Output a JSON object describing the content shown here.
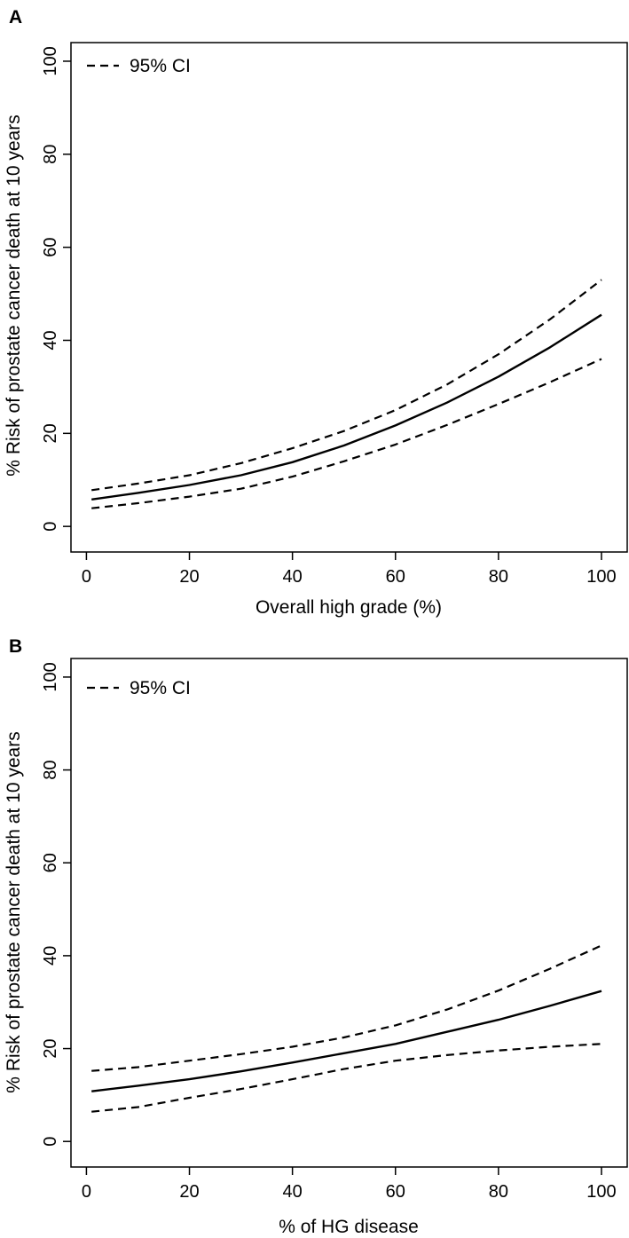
{
  "chart_data": [
    {
      "type": "line",
      "panel_label": "A",
      "xlabel": "Overall high grade (%)",
      "ylabel": "% Risk of prostate cancer death at 10 years",
      "xlim": [
        -3,
        105
      ],
      "ylim": [
        -5.5,
        104
      ],
      "xticks": [
        0,
        20,
        40,
        60,
        80,
        100
      ],
      "yticks": [
        0,
        20,
        40,
        60,
        80,
        100
      ],
      "legend": {
        "position": "top-left",
        "label": "95% CI"
      },
      "x": [
        1,
        10,
        20,
        30,
        40,
        50,
        60,
        70,
        80,
        90,
        100
      ],
      "series": [
        {
          "name": "Estimate",
          "style": "solid",
          "values": [
            5.8,
            7.2,
            8.9,
            11.0,
            13.8,
            17.4,
            21.7,
            26.6,
            32.2,
            38.5,
            45.5
          ]
        },
        {
          "name": "95% CI upper",
          "style": "dashed",
          "values": [
            7.8,
            9.2,
            11.0,
            13.6,
            16.8,
            20.5,
            25.0,
            30.5,
            37.0,
            44.5,
            53.0
          ]
        },
        {
          "name": "95% CI lower",
          "style": "dashed",
          "values": [
            3.9,
            5.0,
            6.4,
            8.1,
            10.7,
            14.0,
            17.6,
            21.8,
            26.3,
            31.0,
            36.0
          ]
        }
      ]
    },
    {
      "type": "line",
      "panel_label": "B",
      "xlabel": "% of HG disease",
      "ylabel": "% Risk of prostate cancer death at 10 years",
      "xlim": [
        -3,
        105
      ],
      "ylim": [
        -5.5,
        104
      ],
      "xticks": [
        0,
        20,
        40,
        60,
        80,
        100
      ],
      "yticks": [
        0,
        20,
        40,
        60,
        80,
        100
      ],
      "legend": {
        "position": "top-left",
        "label": "95% CI"
      },
      "x": [
        1,
        10,
        20,
        30,
        40,
        50,
        60,
        70,
        80,
        90,
        100
      ],
      "series": [
        {
          "name": "Estimate",
          "style": "solid",
          "values": [
            10.8,
            12.0,
            13.4,
            15.1,
            17.0,
            19.0,
            21.0,
            23.6,
            26.2,
            29.2,
            32.4
          ]
        },
        {
          "name": "95% CI upper",
          "style": "dashed",
          "values": [
            15.2,
            16.0,
            17.4,
            18.8,
            20.4,
            22.4,
            25.0,
            28.4,
            32.5,
            37.2,
            42.2
          ]
        },
        {
          "name": "95% CI lower",
          "style": "dashed",
          "values": [
            6.4,
            7.4,
            9.4,
            11.3,
            13.4,
            15.6,
            17.4,
            18.6,
            19.6,
            20.4,
            21.0
          ]
        }
      ]
    }
  ]
}
